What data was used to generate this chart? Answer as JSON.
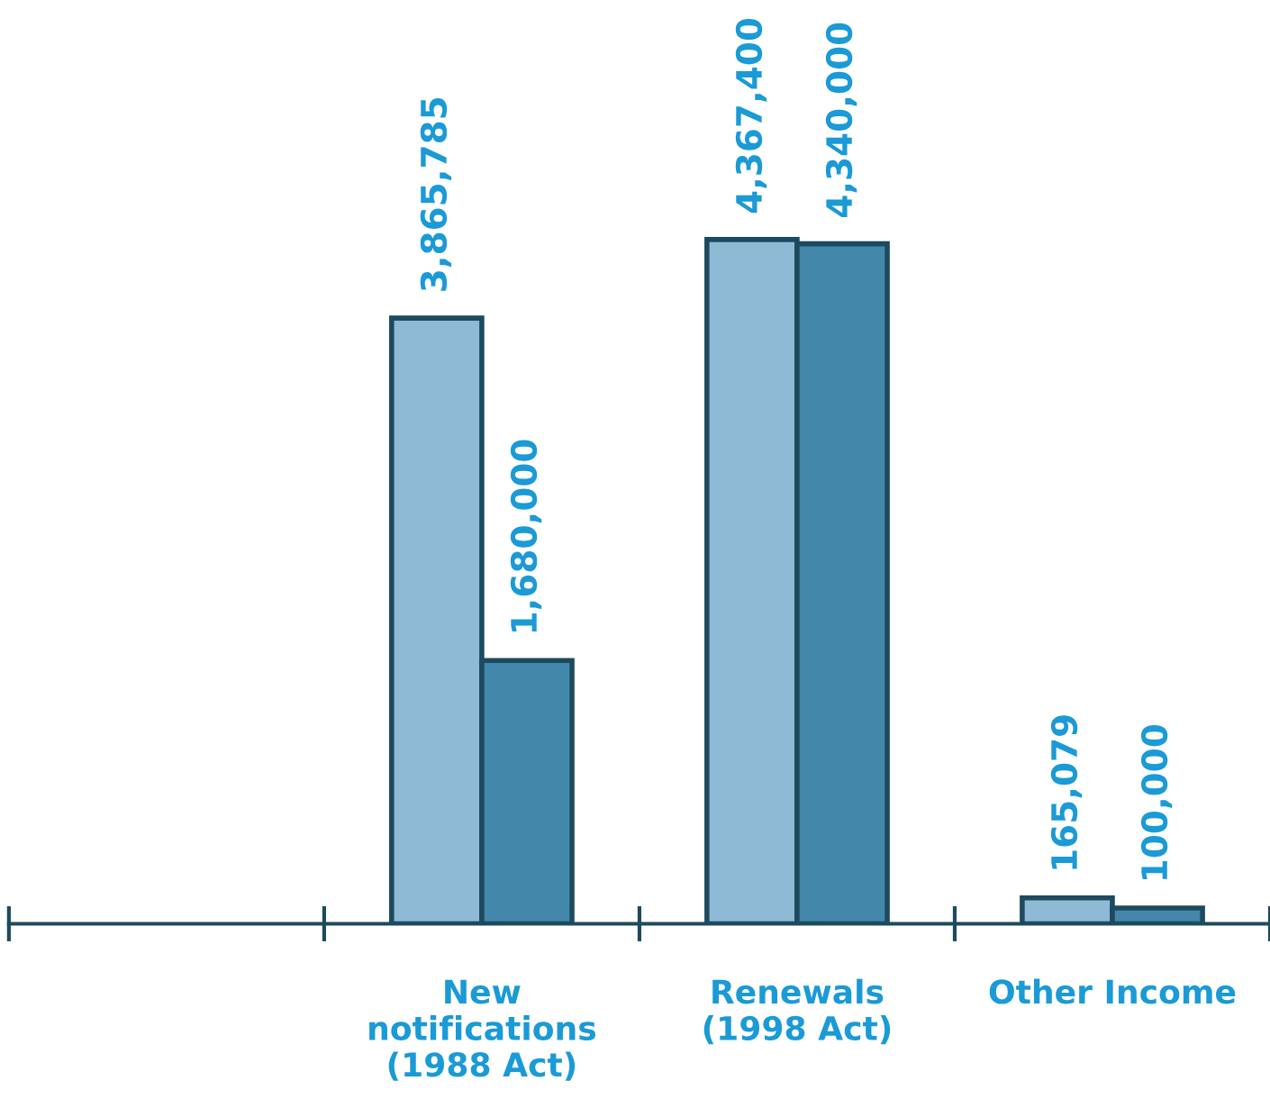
{
  "chart_data": {
    "type": "bar",
    "categories": [
      null,
      "New\nnotifications\n(1988 Act)",
      "Renewals\n(1998 Act)",
      "Other Income"
    ],
    "series": [
      {
        "color": "#8fbad6",
        "values": [
          null,
          3865785,
          4367400,
          165079
        ],
        "value_labels": [
          null,
          "3,865,785",
          "4,367,400",
          "165,079"
        ]
      },
      {
        "color": "#4388aa",
        "values": [
          null,
          1680000,
          4340000,
          100000
        ],
        "value_labels": [
          null,
          "1,680,000",
          "4,340,000",
          "100,000"
        ]
      }
    ],
    "grid": false,
    "legend": false
  }
}
